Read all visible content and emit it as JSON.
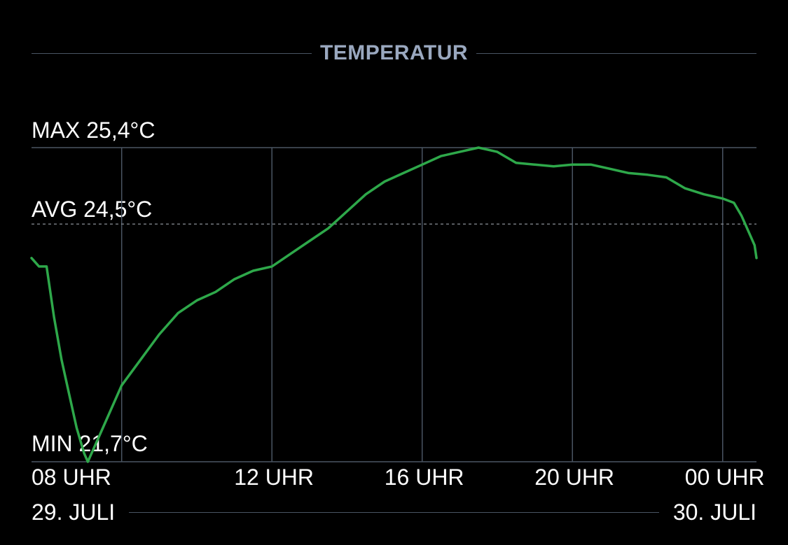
{
  "header": {
    "title": "TEMPERATUR"
  },
  "stats": {
    "max": "MAX 25,4°C",
    "avg": "AVG 24,5°C",
    "min": "MIN 21,7°C"
  },
  "dates": {
    "start": "29. JULI",
    "end": "30. JULI"
  },
  "colors": {
    "line": "#2ea84a",
    "grid": "#4a5563",
    "title": "#9aa8bf",
    "avg_line": "#8a8f98"
  },
  "chart_data": {
    "type": "line",
    "title": "TEMPERATUR",
    "xlabel": "",
    "ylabel": "",
    "x_unit": "hours since 08:00 on 29 July",
    "xlim": [
      -2.4,
      16.9
    ],
    "ylim": [
      21.7,
      25.4
    ],
    "grid": true,
    "x_ticks": [
      {
        "x": 0,
        "label": "08 UHR"
      },
      {
        "x": 4,
        "label": "12 UHR"
      },
      {
        "x": 8,
        "label": "16 UHR"
      },
      {
        "x": 12,
        "label": "20 UHR"
      },
      {
        "x": 16,
        "label": "00 UHR"
      }
    ],
    "reference_lines": [
      {
        "name": "MAX",
        "y": 25.4,
        "style": "solid"
      },
      {
        "name": "AVG",
        "y": 24.5,
        "style": "dashed"
      },
      {
        "name": "MIN",
        "y": 21.7,
        "style": "solid"
      }
    ],
    "series": [
      {
        "name": "",
        "points": [
          [
            -2.4,
            24.1
          ],
          [
            -2.2,
            24.0
          ],
          [
            -2.0,
            24.0
          ],
          [
            -1.8,
            23.4
          ],
          [
            -1.6,
            22.9
          ],
          [
            -1.4,
            22.5
          ],
          [
            -1.2,
            22.1
          ],
          [
            -1.0,
            21.8
          ],
          [
            -0.9,
            21.7
          ],
          [
            -0.7,
            21.9
          ],
          [
            -0.5,
            22.1
          ],
          [
            -0.2,
            22.4
          ],
          [
            0.0,
            22.6
          ],
          [
            0.5,
            22.9
          ],
          [
            1.0,
            23.2
          ],
          [
            1.5,
            23.45
          ],
          [
            2.0,
            23.6
          ],
          [
            2.5,
            23.7
          ],
          [
            3.0,
            23.85
          ],
          [
            3.5,
            23.95
          ],
          [
            4.0,
            24.0
          ],
          [
            4.5,
            24.15
          ],
          [
            5.0,
            24.3
          ],
          [
            5.5,
            24.45
          ],
          [
            6.0,
            24.65
          ],
          [
            6.5,
            24.85
          ],
          [
            7.0,
            25.0
          ],
          [
            7.5,
            25.1
          ],
          [
            8.0,
            25.2
          ],
          [
            8.5,
            25.3
          ],
          [
            9.0,
            25.35
          ],
          [
            9.5,
            25.4
          ],
          [
            10.0,
            25.35
          ],
          [
            10.5,
            25.22
          ],
          [
            11.0,
            25.2
          ],
          [
            11.5,
            25.18
          ],
          [
            12.0,
            25.2
          ],
          [
            12.5,
            25.2
          ],
          [
            13.0,
            25.15
          ],
          [
            13.5,
            25.1
          ],
          [
            14.0,
            25.08
          ],
          [
            14.5,
            25.05
          ],
          [
            15.0,
            24.92
          ],
          [
            15.5,
            24.85
          ],
          [
            16.0,
            24.8
          ],
          [
            16.3,
            24.75
          ],
          [
            16.5,
            24.6
          ],
          [
            16.7,
            24.4
          ],
          [
            16.85,
            24.25
          ],
          [
            16.9,
            24.1
          ]
        ]
      }
    ]
  }
}
